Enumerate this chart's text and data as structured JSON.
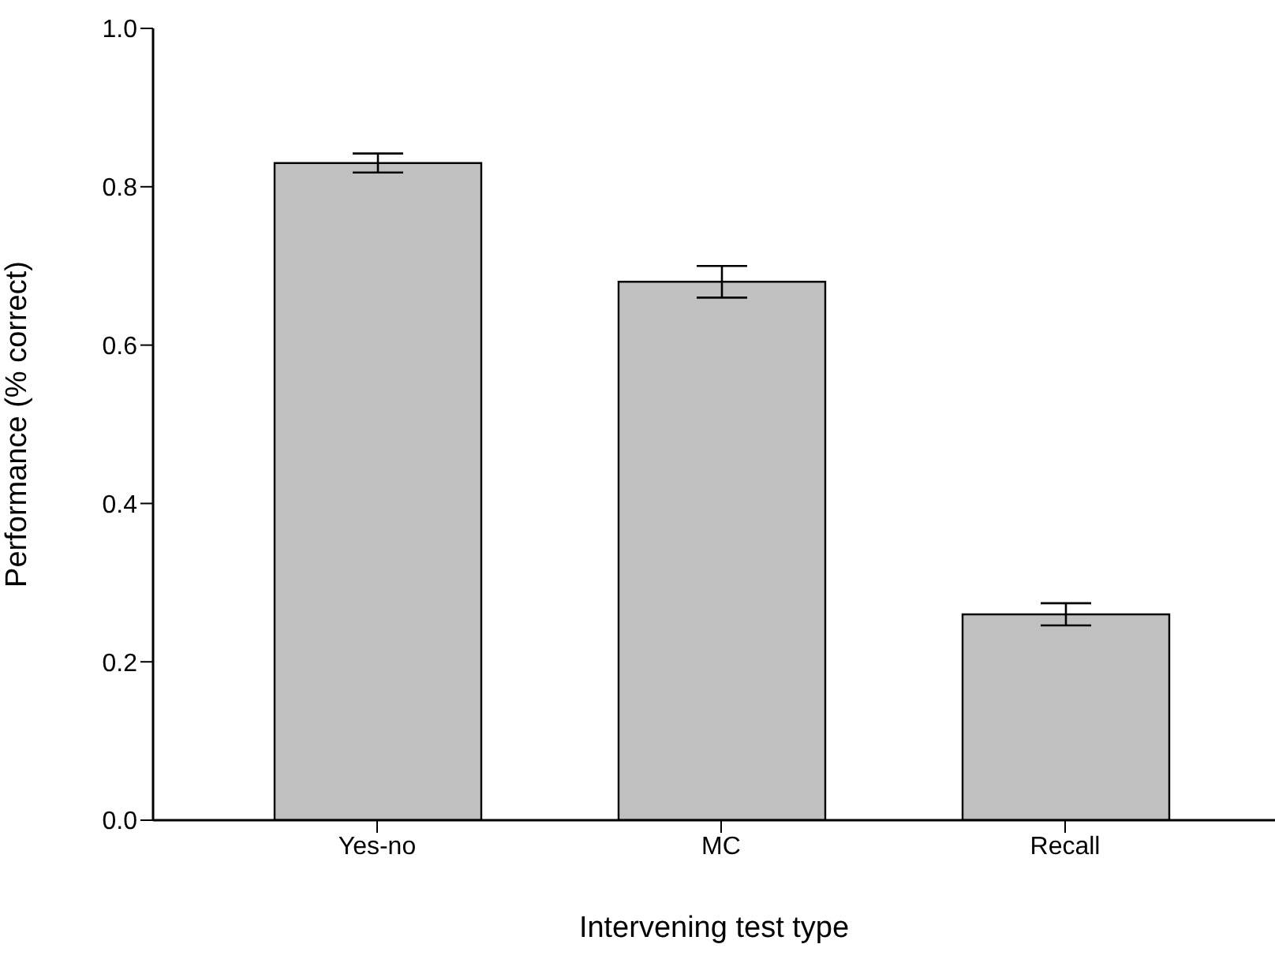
{
  "chart_data": {
    "type": "bar",
    "xlabel": "Intervening test type",
    "ylabel": "Performance (% correct)",
    "categories": [
      "Yes-no",
      "MC",
      "Recall"
    ],
    "values": [
      0.83,
      0.68,
      0.26
    ],
    "errors": [
      0.012,
      0.02,
      0.014
    ],
    "color": "#c0c0c0",
    "ylim": [
      0,
      1
    ],
    "yticks": [
      {
        "value": 0,
        "label": "0.0"
      },
      {
        "value": 0.2,
        "label": "0.2"
      },
      {
        "value": 0.4,
        "label": "0.4"
      },
      {
        "value": 0.6,
        "label": "0.6"
      },
      {
        "value": 0.8,
        "label": "0.8"
      },
      {
        "value": 1,
        "label": "1.0"
      }
    ],
    "grid": false,
    "legend": false
  }
}
